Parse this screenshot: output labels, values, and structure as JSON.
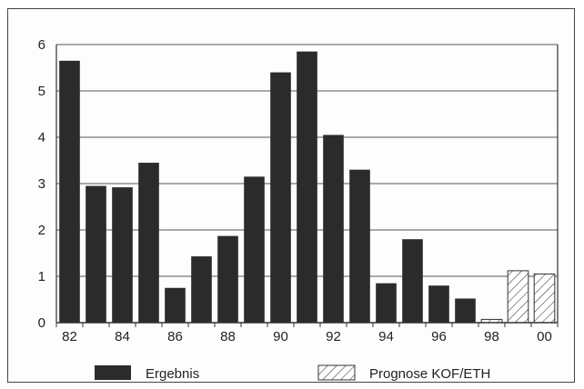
{
  "chart_data": {
    "type": "bar",
    "title": "",
    "xlabel": "",
    "ylabel": "",
    "ylim": [
      0,
      6
    ],
    "y_ticks": [
      "0",
      "1",
      "2",
      "3",
      "4",
      "5",
      "6"
    ],
    "x_tick_labels": [
      "82",
      "84",
      "86",
      "88",
      "90",
      "92",
      "94",
      "96",
      "98",
      "00"
    ],
    "categories": [
      "82",
      "83",
      "84",
      "85",
      "86",
      "87",
      "88",
      "89",
      "90",
      "91",
      "92",
      "93",
      "94",
      "95",
      "96",
      "97",
      "98",
      "99",
      "00"
    ],
    "grid": true,
    "legend_position": "bottom",
    "series": [
      {
        "name": "Ergebnis",
        "color": "#2b2b2b",
        "values": [
          5.65,
          2.95,
          2.92,
          3.45,
          0.75,
          1.43,
          1.87,
          3.15,
          5.4,
          5.85,
          4.05,
          3.3,
          0.85,
          1.8,
          0.8,
          0.52,
          null,
          null,
          null
        ]
      },
      {
        "name": "Prognose KOF/ETH",
        "pattern": "hatch",
        "values": [
          null,
          null,
          null,
          null,
          null,
          null,
          null,
          null,
          null,
          null,
          null,
          null,
          null,
          null,
          null,
          null,
          0.07,
          1.12,
          1.05
        ]
      }
    ]
  }
}
